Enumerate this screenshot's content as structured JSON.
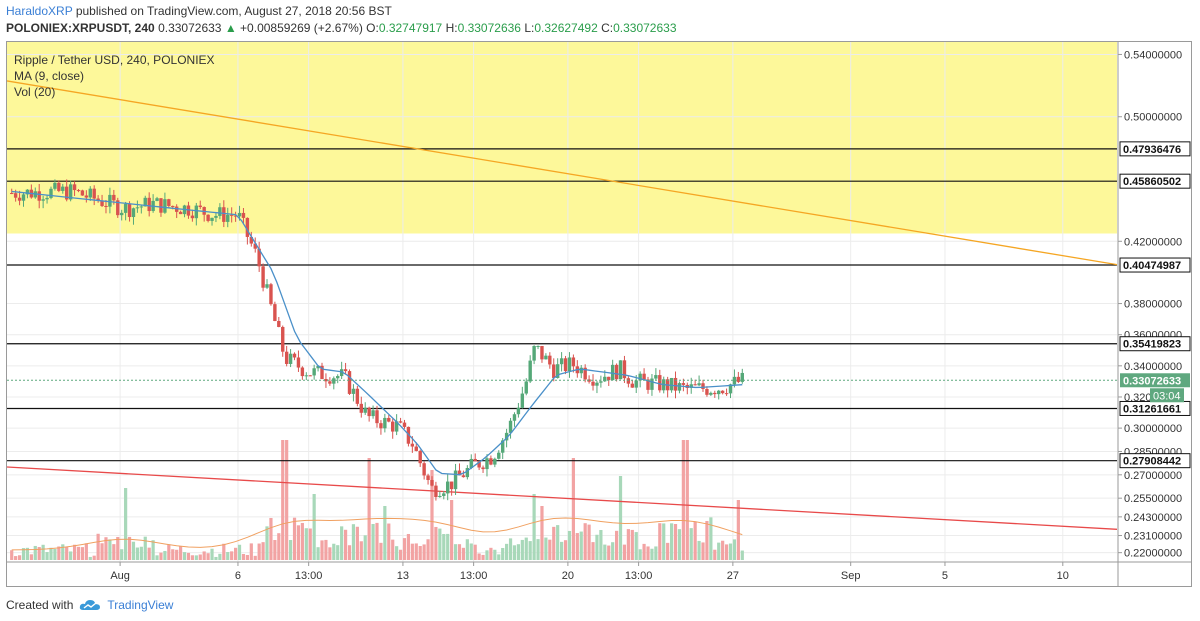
{
  "header": {
    "author": "HaraldoXRP",
    "published": "published on TradingView.com, August 27, 2018 20:56 BST",
    "symbol": "POLONIEX:XRPUSDT, 240",
    "price": "0.33072633",
    "arrow": "▲",
    "change": "+0.00859269 (+2.67%)",
    "o_label": "O:",
    "o_value": "0.32747917",
    "h_label": "H:",
    "h_value": "0.33072636",
    "l_label": "L:",
    "l_value": "0.32627492",
    "c_label": "C:",
    "c_value": "0.33072633"
  },
  "legend": {
    "title": "Ripple / Tether USD, 240, POLONIEX",
    "ma": "MA (9, close)",
    "vol": "Vol (20)"
  },
  "footer": {
    "created_with": "Created with",
    "brand": "TradingView"
  },
  "colors": {
    "up_candle": "#55a878",
    "down_candle": "#d9534f",
    "up_volume": "#a8d8b9",
    "down_volume": "#f2a3a3",
    "ma_line": "#4a90c9",
    "vol_ma_line": "#f0a060",
    "yellow_zone": "#fdf89a",
    "trendline_upper": "#f5a623",
    "trendline_lower": "#e84a4a",
    "last_price": "#5fa87f"
  },
  "chart_data": {
    "type": "candlestick",
    "title": "Ripple / Tether USD, 240, POLONIEX",
    "y_axis": {
      "range": [
        0.214,
        0.548
      ],
      "ticks": [
        "0.54000000",
        "0.50000000",
        "0.42000000",
        "0.38000000",
        "0.36000000",
        "0.34000000",
        "0.32000000",
        "0.30000000",
        "0.28500000",
        "0.27000000",
        "0.25500000",
        "0.24300000",
        "0.23100000",
        "0.22000000"
      ],
      "tick_values": [
        0.54,
        0.5,
        0.42,
        0.38,
        0.36,
        0.34,
        0.32,
        0.3,
        0.285,
        0.27,
        0.255,
        0.243,
        0.231,
        0.22
      ]
    },
    "x_axis": {
      "ticks": [
        "Aug",
        "6",
        "13:00",
        "13",
        "13:00",
        "20",
        "13:00",
        "27",
        "Sep",
        "5",
        "10"
      ],
      "tick_days": [
        1.0,
        6.0,
        9.0,
        13.0,
        16.0,
        20.0,
        23.0,
        27.0,
        32.0,
        36.0,
        41.0
      ],
      "day_range": [
        -3.8,
        43.3
      ]
    },
    "horizontal_levels": [
      "0.47936476",
      "0.45860502",
      "0.40474987",
      "0.35419823",
      "0.31261661",
      "0.27908442"
    ],
    "horizontal_level_values": [
      0.47936476,
      0.45860502,
      0.40474987,
      0.35419823,
      0.31261661,
      0.27908442
    ],
    "last_price": {
      "label": "0.33072633",
      "value": 0.33072633,
      "countdown": "03:04"
    },
    "resistance_zone": [
      0.425,
      0.548
    ],
    "trendlines": [
      {
        "name": "upper",
        "from": [
          -3.8,
          0.523
        ],
        "to": [
          43.3,
          0.405
        ]
      },
      {
        "name": "lower",
        "from": [
          -3.8,
          0.275
        ],
        "to": [
          43.3,
          0.235
        ]
      }
    ],
    "price_path": [
      [
        -3.6,
        0.451
      ],
      [
        -1.0,
        0.452
      ],
      [
        1.2,
        0.441
      ],
      [
        2.4,
        0.444
      ],
      [
        4.0,
        0.441
      ],
      [
        5.0,
        0.437
      ],
      [
        6.0,
        0.437
      ],
      [
        6.8,
        0.41
      ],
      [
        8.0,
        0.345
      ],
      [
        9.0,
        0.336
      ],
      [
        10.5,
        0.333
      ],
      [
        11.5,
        0.307
      ],
      [
        12.8,
        0.301
      ],
      [
        13.4,
        0.29
      ],
      [
        14.2,
        0.261
      ],
      [
        15.0,
        0.264
      ],
      [
        16.0,
        0.276
      ],
      [
        16.8,
        0.282
      ],
      [
        17.5,
        0.3
      ],
      [
        18.2,
        0.328
      ],
      [
        18.6,
        0.352
      ],
      [
        19.4,
        0.338
      ],
      [
        20.2,
        0.341
      ],
      [
        21.2,
        0.332
      ],
      [
        22.2,
        0.338
      ],
      [
        22.8,
        0.33
      ],
      [
        24.0,
        0.328
      ],
      [
        25.0,
        0.325
      ],
      [
        26.5,
        0.326
      ],
      [
        27.5,
        0.331
      ]
    ],
    "ma_path": [
      [
        -3.6,
        0.452
      ],
      [
        4.0,
        0.44
      ],
      [
        6.0,
        0.437
      ],
      [
        7.5,
        0.4
      ],
      [
        8.5,
        0.358
      ],
      [
        9.5,
        0.338
      ],
      [
        10.5,
        0.336
      ],
      [
        11.5,
        0.322
      ],
      [
        12.8,
        0.303
      ],
      [
        13.6,
        0.29
      ],
      [
        14.5,
        0.271
      ],
      [
        15.5,
        0.27
      ],
      [
        16.5,
        0.281
      ],
      [
        17.5,
        0.295
      ],
      [
        18.5,
        0.315
      ],
      [
        19.5,
        0.334
      ],
      [
        20.5,
        0.338
      ],
      [
        21.5,
        0.336
      ],
      [
        22.5,
        0.334
      ],
      [
        24.0,
        0.328
      ],
      [
        25.5,
        0.326
      ],
      [
        27.5,
        0.328
      ]
    ],
    "volume_spikes": [
      [
        1.2,
        0.6
      ],
      [
        8.0,
        1.0
      ],
      [
        9.2,
        0.55
      ],
      [
        11.5,
        0.85
      ],
      [
        12.2,
        0.45
      ],
      [
        14.2,
        0.75
      ],
      [
        15.0,
        0.5
      ],
      [
        18.5,
        0.55
      ],
      [
        18.9,
        0.45
      ],
      [
        20.3,
        0.85
      ],
      [
        22.3,
        0.7
      ],
      [
        24.5,
        0.3
      ],
      [
        25.0,
        1.0
      ],
      [
        27.2,
        0.5
      ]
    ]
  }
}
